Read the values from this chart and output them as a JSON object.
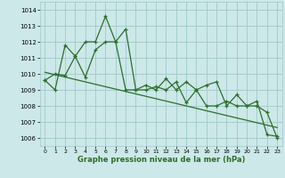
{
  "xlabel": "Graphe pression niveau de la mer (hPa)",
  "bg_color": "#cce8e8",
  "grid_color": "#a0c8c8",
  "line_color": "#2d6e2d",
  "xlim": [
    -0.5,
    23.5
  ],
  "ylim": [
    1005.5,
    1014.5
  ],
  "yticks": [
    1006,
    1007,
    1008,
    1009,
    1010,
    1011,
    1012,
    1013,
    1014
  ],
  "xticks": [
    0,
    1,
    2,
    3,
    4,
    5,
    6,
    7,
    8,
    9,
    10,
    11,
    12,
    13,
    14,
    15,
    16,
    17,
    18,
    19,
    20,
    21,
    22,
    23
  ],
  "series1": [
    1009.6,
    1009.0,
    1011.8,
    1011.1,
    1012.0,
    1012.0,
    1013.6,
    1012.0,
    1012.8,
    1009.0,
    1009.3,
    1009.0,
    1009.7,
    1009.0,
    1009.5,
    1009.0,
    1009.3,
    1009.5,
    1008.0,
    1008.7,
    1008.0,
    1008.0,
    1007.6,
    1006.0
  ],
  "series2": [
    1009.6,
    1010.0,
    1009.9,
    1011.1,
    1009.8,
    1011.5,
    1012.0,
    1012.0,
    1009.0,
    1009.0,
    1009.0,
    1009.2,
    1009.0,
    1009.5,
    1008.2,
    1009.0,
    1008.0,
    1008.0,
    1008.3,
    1008.0,
    1008.0,
    1008.3,
    1006.2,
    1006.1
  ],
  "trend": [
    1010.1,
    1009.95,
    1009.8,
    1009.65,
    1009.5,
    1009.35,
    1009.2,
    1009.05,
    1008.9,
    1008.75,
    1008.6,
    1008.45,
    1008.3,
    1008.15,
    1008.0,
    1007.85,
    1007.7,
    1007.55,
    1007.4,
    1007.25,
    1007.1,
    1006.95,
    1006.8,
    1006.65
  ]
}
